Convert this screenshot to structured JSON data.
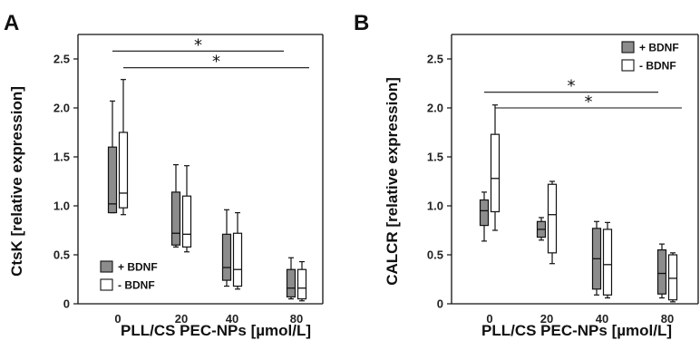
{
  "chart_data": [
    {
      "panel": "A",
      "type": "box",
      "xlabel": "PLL/CS PEC-NPs [µmol/L]",
      "ylabel": "CtsK [relative expression]",
      "categories": [
        "0",
        "20",
        "40",
        "80"
      ],
      "ylim": [
        0,
        2.75
      ],
      "yticks": [
        "0",
        "0.5",
        "1.0",
        "1.5",
        "2.0",
        "2.5"
      ],
      "ytick_values": [
        0,
        0.5,
        1.0,
        1.5,
        2.0,
        2.5
      ],
      "legend": {
        "placement": "bottom-left",
        "entries": [
          "+ BDNF",
          "- BDNF"
        ]
      },
      "series": [
        {
          "name": "+ BDNF",
          "color": "#8c8c8c",
          "boxes": [
            {
              "min": 0.93,
              "q1": 0.93,
              "median": 1.02,
              "q3": 1.6,
              "max": 2.07
            },
            {
              "min": 0.58,
              "q1": 0.6,
              "median": 0.72,
              "q3": 1.14,
              "max": 1.42
            },
            {
              "min": 0.18,
              "q1": 0.24,
              "median": 0.37,
              "q3": 0.71,
              "max": 0.96
            },
            {
              "min": 0.05,
              "q1": 0.07,
              "median": 0.16,
              "q3": 0.35,
              "max": 0.47
            }
          ]
        },
        {
          "name": "- BDNF",
          "color": "#ffffff",
          "boxes": [
            {
              "min": 0.91,
              "q1": 0.98,
              "median": 1.13,
              "q3": 1.75,
              "max": 2.29
            },
            {
              "min": 0.53,
              "q1": 0.58,
              "median": 0.71,
              "q3": 1.1,
              "max": 1.41
            },
            {
              "min": 0.15,
              "q1": 0.18,
              "median": 0.35,
              "q3": 0.72,
              "max": 0.93
            },
            {
              "min": 0.03,
              "q1": 0.05,
              "median": 0.16,
              "q3": 0.35,
              "max": 0.43
            }
          ]
        }
      ],
      "significance": [
        {
          "from": "0",
          "to": "80",
          "y": 2.58,
          "label": "*"
        },
        {
          "from": "0",
          "to": "80",
          "y": 2.41,
          "label": "*"
        }
      ]
    },
    {
      "panel": "B",
      "type": "box",
      "xlabel": "PLL/CS PEC-NPs [µmol/L]",
      "ylabel": "CALCR [relative expression]",
      "categories": [
        "0",
        "20",
        "40",
        "80"
      ],
      "ylim": [
        0,
        2.75
      ],
      "yticks": [
        "0",
        "0.5",
        "1.0",
        "1.5",
        "2.0",
        "2.5"
      ],
      "ytick_values": [
        0,
        0.5,
        1.0,
        1.5,
        2.0,
        2.5
      ],
      "legend": {
        "placement": "top-right",
        "entries": [
          "+ BDNF",
          "- BDNF"
        ]
      },
      "series": [
        {
          "name": "+ BDNF",
          "color": "#8c8c8c",
          "boxes": [
            {
              "min": 0.64,
              "q1": 0.8,
              "median": 0.95,
              "q3": 1.06,
              "max": 1.14
            },
            {
              "min": 0.65,
              "q1": 0.68,
              "median": 0.76,
              "q3": 0.84,
              "max": 0.88
            },
            {
              "min": 0.09,
              "q1": 0.15,
              "median": 0.46,
              "q3": 0.77,
              "max": 0.84
            },
            {
              "min": 0.06,
              "q1": 0.1,
              "median": 0.31,
              "q3": 0.55,
              "max": 0.61
            }
          ]
        },
        {
          "name": "- BDNF",
          "color": "#ffffff",
          "boxes": [
            {
              "min": 0.75,
              "q1": 0.94,
              "median": 1.28,
              "q3": 1.73,
              "max": 2.03
            },
            {
              "min": 0.41,
              "q1": 0.52,
              "median": 0.91,
              "q3": 1.22,
              "max": 1.25
            },
            {
              "min": 0.06,
              "q1": 0.09,
              "median": 0.4,
              "q3": 0.76,
              "max": 0.83
            },
            {
              "min": 0.02,
              "q1": 0.04,
              "median": 0.26,
              "q3": 0.5,
              "max": 0.52
            }
          ]
        }
      ],
      "significance": [
        {
          "from": "0",
          "to": "80",
          "y": 2.16,
          "label": "*"
        },
        {
          "from": "0",
          "to": "80",
          "y": 2.0,
          "label": "*"
        }
      ]
    }
  ]
}
